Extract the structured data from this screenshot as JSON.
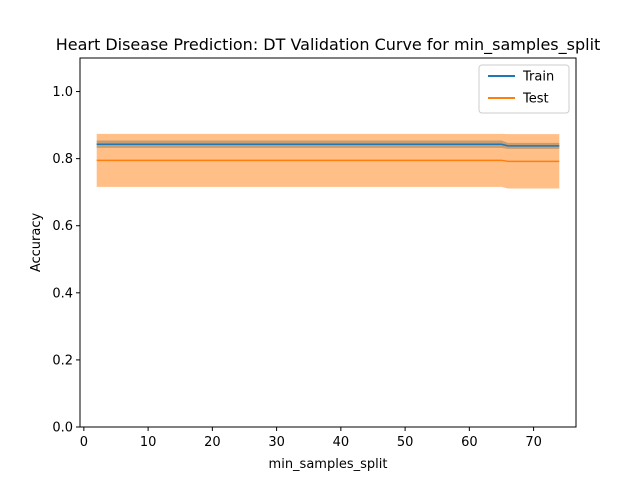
{
  "chart_data": {
    "type": "line",
    "title": "Heart Disease Prediction: DT Validation Curve for min_samples_split",
    "xlabel": "min_samples_split",
    "ylabel": "Accuracy",
    "xlim": [
      -0.6,
      76.6
    ],
    "ylim": [
      0.0,
      1.1
    ],
    "xticks": [
      0,
      10,
      20,
      30,
      40,
      50,
      60,
      70
    ],
    "yticks": [
      0.0,
      0.2,
      0.4,
      0.6,
      0.8,
      1.0
    ],
    "xtick_labels": [
      "0",
      "10",
      "20",
      "30",
      "40",
      "50",
      "60",
      "70"
    ],
    "ytick_labels": [
      "0.0",
      "0.2",
      "0.4",
      "0.6",
      "0.8",
      "1.0"
    ],
    "legend_position": "top-right",
    "series": [
      {
        "name": "Train",
        "color": "#1f77b4",
        "x": [
          2,
          65,
          66,
          74
        ],
        "y": [
          0.843,
          0.843,
          0.838,
          0.838
        ],
        "band_lower": [
          0.832,
          0.832,
          0.829,
          0.829
        ],
        "band_upper": [
          0.854,
          0.854,
          0.847,
          0.847
        ]
      },
      {
        "name": "Test",
        "color": "#ff7f0e",
        "x": [
          2,
          65,
          66,
          74
        ],
        "y": [
          0.795,
          0.795,
          0.792,
          0.792
        ],
        "band_lower": [
          0.716,
          0.716,
          0.711,
          0.711
        ],
        "band_upper": [
          0.874,
          0.874,
          0.873,
          0.873
        ]
      }
    ]
  }
}
